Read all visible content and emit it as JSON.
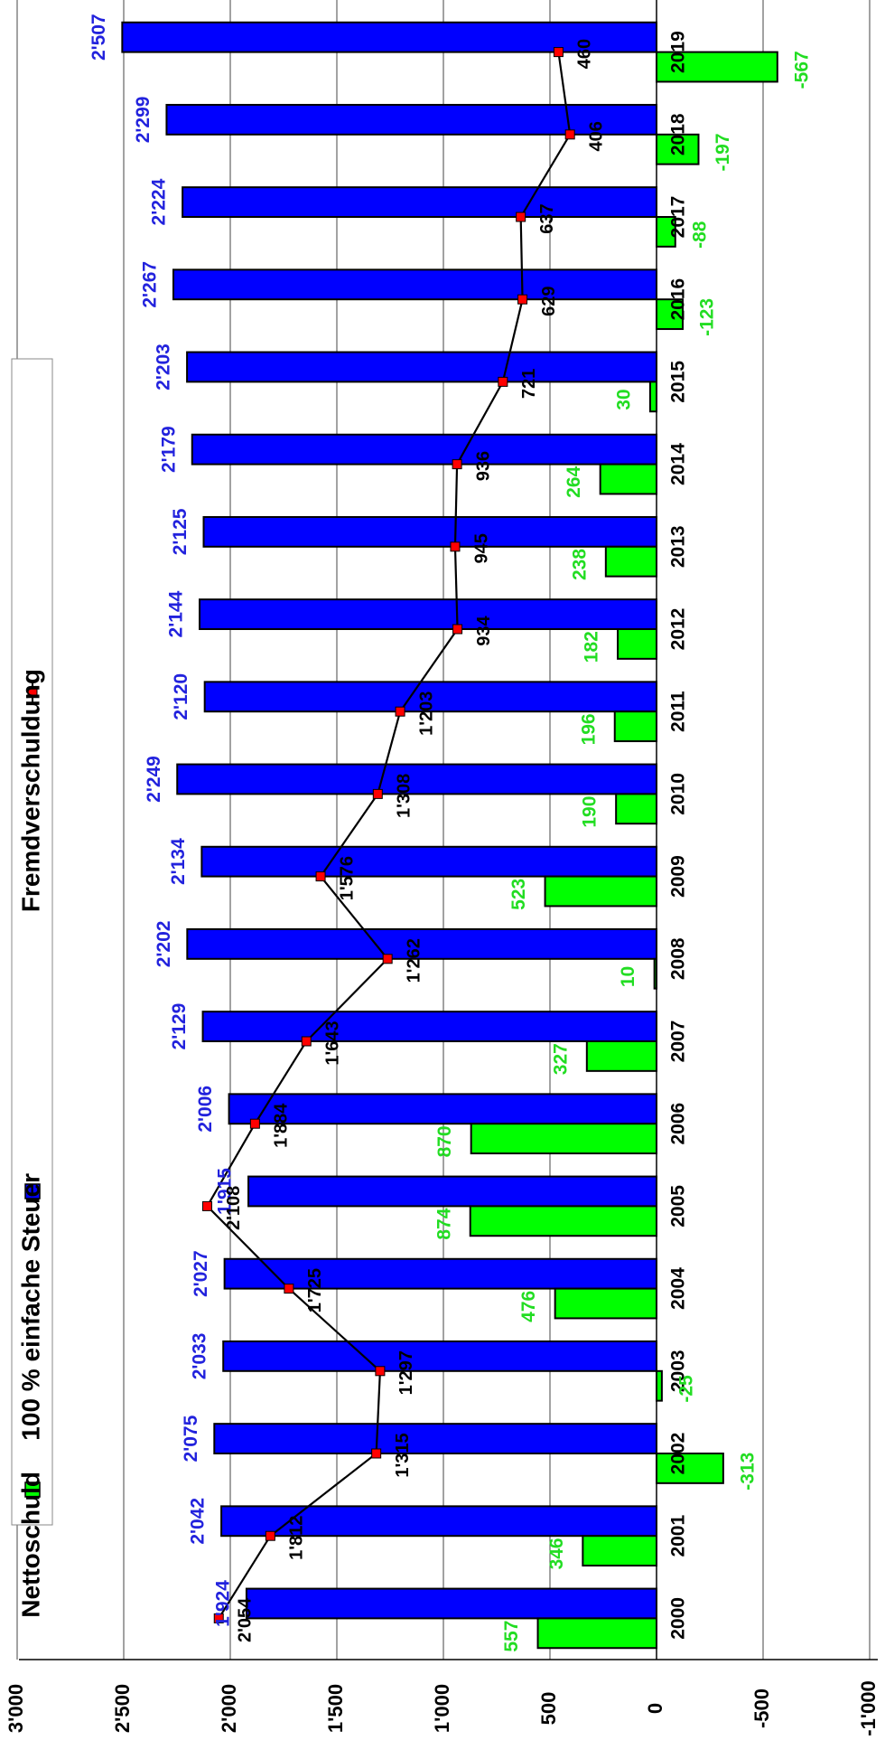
{
  "chart_data": {
    "type": "bar",
    "orientation": "rotated-90",
    "categories": [
      "2000",
      "2001",
      "2002",
      "2003",
      "2004",
      "2005",
      "2006",
      "2007",
      "2008",
      "2009",
      "2010",
      "2011",
      "2012",
      "2013",
      "2014",
      "2015",
      "2016",
      "2017",
      "2018",
      "2019"
    ],
    "series": [
      {
        "name": "Nettoschuld",
        "kind": "bar",
        "color": "#00ff00",
        "label_color": "#22dd22",
        "values": [
          557,
          346,
          -313,
          -25,
          476,
          874,
          870,
          327,
          10,
          523,
          190,
          196,
          182,
          238,
          264,
          30,
          -123,
          -88,
          -197,
          -567
        ],
        "labels": [
          "557",
          "346",
          "-313",
          "-25",
          "476",
          "874",
          "870",
          "327",
          "10",
          "523",
          "190",
          "196",
          "182",
          "238",
          "264",
          "30",
          "-123",
          "-88",
          "-197",
          "-567"
        ]
      },
      {
        "name": "100 % einfache Steuer",
        "kind": "bar",
        "color": "#0000ff",
        "label_color": "#2222dd",
        "values": [
          1924,
          2042,
          2075,
          2033,
          2027,
          1915,
          2006,
          2129,
          2202,
          2134,
          2249,
          2120,
          2144,
          2125,
          2179,
          2203,
          2267,
          2224,
          2299,
          2507
        ],
        "labels": [
          "1'924",
          "2'042",
          "2'075",
          "2'033",
          "2'027",
          "1'915",
          "2'006",
          "2'129",
          "2'202",
          "2'134",
          "2'249",
          "2'120",
          "2'144",
          "2'125",
          "2'179",
          "2'203",
          "2'267",
          "2'224",
          "2'299",
          "2'507"
        ]
      },
      {
        "name": "Fremdverschuldung",
        "kind": "line",
        "color": "#000000",
        "marker_color": "#ff0000",
        "values": [
          2054,
          1812,
          1315,
          1297,
          1725,
          2108,
          1884,
          1643,
          1262,
          1576,
          1308,
          1203,
          934,
          945,
          936,
          721,
          629,
          637,
          406,
          460
        ],
        "labels": [
          "2'054",
          "1'812",
          "1'315",
          "1'297",
          "1'725",
          "2'108",
          "1'884",
          "1'643",
          "1'262",
          "1'576",
          "1'308",
          "1'203",
          "934",
          "945",
          "936",
          "721",
          "629",
          "637",
          "406",
          "460"
        ]
      }
    ],
    "value_axis": {
      "min": -1000,
      "max": 3000,
      "ticks": [
        3000,
        2500,
        2000,
        1500,
        1000,
        500,
        0,
        -500,
        -1000
      ],
      "tick_labels": [
        "3'000",
        "2'500",
        "2'000",
        "1'500",
        "1'000",
        "500",
        "0",
        "-500",
        "-1'000"
      ]
    },
    "grid": true,
    "legend": "left",
    "title": "",
    "xlabel": "",
    "ylabel": ""
  }
}
